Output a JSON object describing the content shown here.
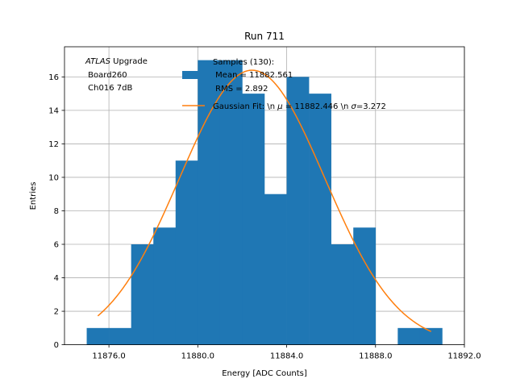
{
  "chart_data": {
    "type": "bar",
    "title": "Run 711",
    "xlabel": "Energy [ADC Counts]",
    "ylabel": "Entries",
    "xlim": [
      11874.0,
      11892.0
    ],
    "ylim": [
      0,
      17.8
    ],
    "grid": true,
    "xticks": [
      11876.0,
      11880.0,
      11884.0,
      11888.0,
      11892.0
    ],
    "xtick_labels": [
      "11876.0",
      "11880.0",
      "11884.0",
      "11888.0",
      "11892.0"
    ],
    "yticks": [
      0,
      2,
      4,
      6,
      8,
      10,
      12,
      14,
      16
    ],
    "ytick_labels": [
      "0",
      "2",
      "4",
      "6",
      "8",
      "10",
      "12",
      "14",
      "16"
    ],
    "bin_edges": [
      11875,
      11876,
      11877,
      11878,
      11879,
      11880,
      11881,
      11882,
      11883,
      11884,
      11885,
      11886,
      11887,
      11888,
      11889,
      11890,
      11891
    ],
    "counts": [
      1,
      1,
      6,
      7,
      11,
      17,
      17,
      15,
      9,
      16,
      15,
      6,
      7,
      0,
      1,
      1
    ],
    "histogram_color": "#1f77b4",
    "fit": {
      "mu": 11882.446,
      "sigma": 3.272,
      "amplitude": 16.4,
      "x_range": [
        11875.5,
        11890.5
      ],
      "color": "#ff7f0e"
    },
    "annotation": {
      "line1_italic": "ATLAS",
      "line1_rest": " Upgrade",
      "line2": " Board260",
      "line3": " Ch016 7dB"
    },
    "legend": {
      "placement": "top-center",
      "entries": [
        {
          "kind": "patch",
          "lines": [
            "Samples (130):",
            " Mean = 11882.561",
            " RMS = 2.892"
          ]
        },
        {
          "kind": "line",
          "text_before_mu": "Gaussian Fit: \\n ",
          "mu_symbol": "μ",
          "text_mid": " = 11882.446 \\n ",
          "sigma_symbol": "σ",
          "text_after": "=3.272"
        }
      ]
    }
  }
}
